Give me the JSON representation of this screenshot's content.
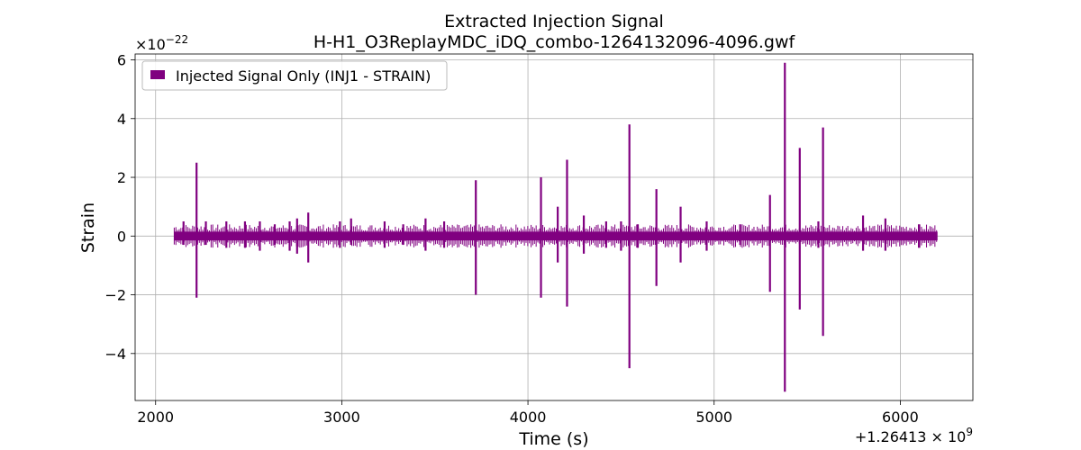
{
  "chart_data": {
    "type": "line",
    "title": "Extracted Injection Signal",
    "subtitle": "H-H1_O3ReplayMDC_iDQ_combo-1264132096-4096.gwf",
    "xlabel": "Time (s)",
    "ylabel": "Strain",
    "x_offset_label": "+1.26413 × 10",
    "x_offset_exp": "9",
    "y_multiplier_label": "×10",
    "y_multiplier_exp": "−22",
    "xlim": [
      1890,
      6390
    ],
    "ylim": [
      -5.6,
      6.2
    ],
    "grid": true,
    "legend_position": "top-left",
    "x_ticks": [
      {
        "value": 2000,
        "label": "2000"
      },
      {
        "value": 3000,
        "label": "3000"
      },
      {
        "value": 4000,
        "label": "4000"
      },
      {
        "value": 5000,
        "label": "5000"
      },
      {
        "value": 6000,
        "label": "6000"
      }
    ],
    "y_ticks": [
      {
        "value": -4,
        "label": "−4"
      },
      {
        "value": -2,
        "label": "−2"
      },
      {
        "value": 0,
        "label": "0"
      },
      {
        "value": 2,
        "label": "2"
      },
      {
        "value": 4,
        "label": "4"
      },
      {
        "value": 6,
        "label": "6"
      }
    ],
    "series": [
      {
        "name": "Injected Signal Only (INJ1 - STRAIN)",
        "color": "#800080",
        "x_range": [
          2100,
          6200
        ],
        "baseline_band": [
          -0.15,
          0.15
        ],
        "spikes": [
          {
            "x": 2150,
            "y_max": 0.5,
            "y_min": -0.3
          },
          {
            "x": 2220,
            "y_max": 2.5,
            "y_min": -2.1
          },
          {
            "x": 2270,
            "y_max": 0.5,
            "y_min": -0.3
          },
          {
            "x": 2380,
            "y_max": 0.5,
            "y_min": -0.4
          },
          {
            "x": 2480,
            "y_max": 0.5,
            "y_min": -0.4
          },
          {
            "x": 2560,
            "y_max": 0.5,
            "y_min": -0.5
          },
          {
            "x": 2640,
            "y_max": 0.4,
            "y_min": -0.3
          },
          {
            "x": 2720,
            "y_max": 0.5,
            "y_min": -0.5
          },
          {
            "x": 2760,
            "y_max": 0.6,
            "y_min": -0.6
          },
          {
            "x": 2820,
            "y_max": 0.8,
            "y_min": -0.9
          },
          {
            "x": 2990,
            "y_max": 0.5,
            "y_min": -0.4
          },
          {
            "x": 3050,
            "y_max": 0.6,
            "y_min": -0.3
          },
          {
            "x": 3230,
            "y_max": 0.5,
            "y_min": -0.4
          },
          {
            "x": 3330,
            "y_max": 0.4,
            "y_min": -0.3
          },
          {
            "x": 3450,
            "y_max": 0.6,
            "y_min": -0.5
          },
          {
            "x": 3550,
            "y_max": 0.5,
            "y_min": -0.4
          },
          {
            "x": 3720,
            "y_max": 1.9,
            "y_min": -2.0
          },
          {
            "x": 4070,
            "y_max": 2.0,
            "y_min": -2.1
          },
          {
            "x": 4160,
            "y_max": 1.0,
            "y_min": -0.9
          },
          {
            "x": 4210,
            "y_max": 2.6,
            "y_min": -2.4
          },
          {
            "x": 4300,
            "y_max": 0.7,
            "y_min": -0.6
          },
          {
            "x": 4420,
            "y_max": 0.5,
            "y_min": -0.4
          },
          {
            "x": 4500,
            "y_max": 0.5,
            "y_min": -0.5
          },
          {
            "x": 4545,
            "y_max": 3.8,
            "y_min": -4.5
          },
          {
            "x": 4590,
            "y_max": 0.4,
            "y_min": -0.4
          },
          {
            "x": 4690,
            "y_max": 1.6,
            "y_min": -1.7
          },
          {
            "x": 4820,
            "y_max": 1.0,
            "y_min": -0.9
          },
          {
            "x": 4960,
            "y_max": 0.5,
            "y_min": -0.5
          },
          {
            "x": 5140,
            "y_max": 0.4,
            "y_min": -0.3
          },
          {
            "x": 5300,
            "y_max": 1.4,
            "y_min": -1.9
          },
          {
            "x": 5380,
            "y_max": 5.9,
            "y_min": -5.3
          },
          {
            "x": 5460,
            "y_max": 3.0,
            "y_min": -2.5
          },
          {
            "x": 5560,
            "y_max": 0.5,
            "y_min": -0.4
          },
          {
            "x": 5585,
            "y_max": 3.7,
            "y_min": -3.4
          },
          {
            "x": 5800,
            "y_max": 0.7,
            "y_min": -0.5
          },
          {
            "x": 5920,
            "y_max": 0.6,
            "y_min": -0.5
          },
          {
            "x": 6100,
            "y_max": 0.4,
            "y_min": -0.4
          }
        ]
      }
    ]
  }
}
